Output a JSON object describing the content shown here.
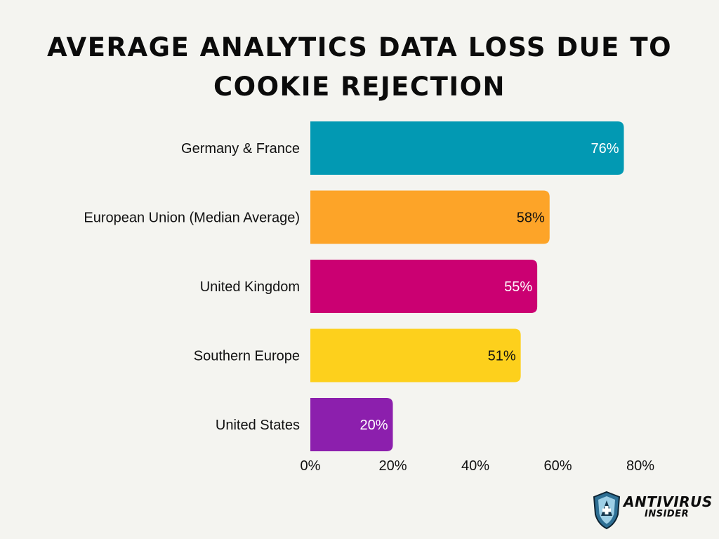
{
  "chart_data": {
    "type": "bar",
    "orientation": "horizontal",
    "title": "AVERAGE ANALYTICS DATA LOSS DUE TO COOKIE REJECTION",
    "xlabel": "",
    "ylabel": "",
    "xlim": [
      0,
      80
    ],
    "x_ticks": [
      0,
      20,
      40,
      60,
      80
    ],
    "x_tick_labels": [
      "0%",
      "20%",
      "40%",
      "60%",
      "80%"
    ],
    "grid": false,
    "categories": [
      "Germany & France",
      "European Union (Median Average)",
      "United Kingdom",
      "Southern Europe",
      "United States"
    ],
    "values": [
      76,
      58,
      55,
      51,
      20
    ],
    "data_labels": [
      "76%",
      "58%",
      "55%",
      "51%",
      "20%"
    ],
    "colors": [
      "#0299b3",
      "#fda428",
      "#cb0072",
      "#fdd01c",
      "#8c1fad"
    ],
    "label_colors": [
      "#ffffff",
      "#111111",
      "#ffffff",
      "#111111",
      "#ffffff"
    ]
  },
  "logo": {
    "name": "ANTIVIRUS",
    "sub": "INSIDER",
    "shield_color": "#2e6f94",
    "accent_color": "#9ecfe6"
  }
}
